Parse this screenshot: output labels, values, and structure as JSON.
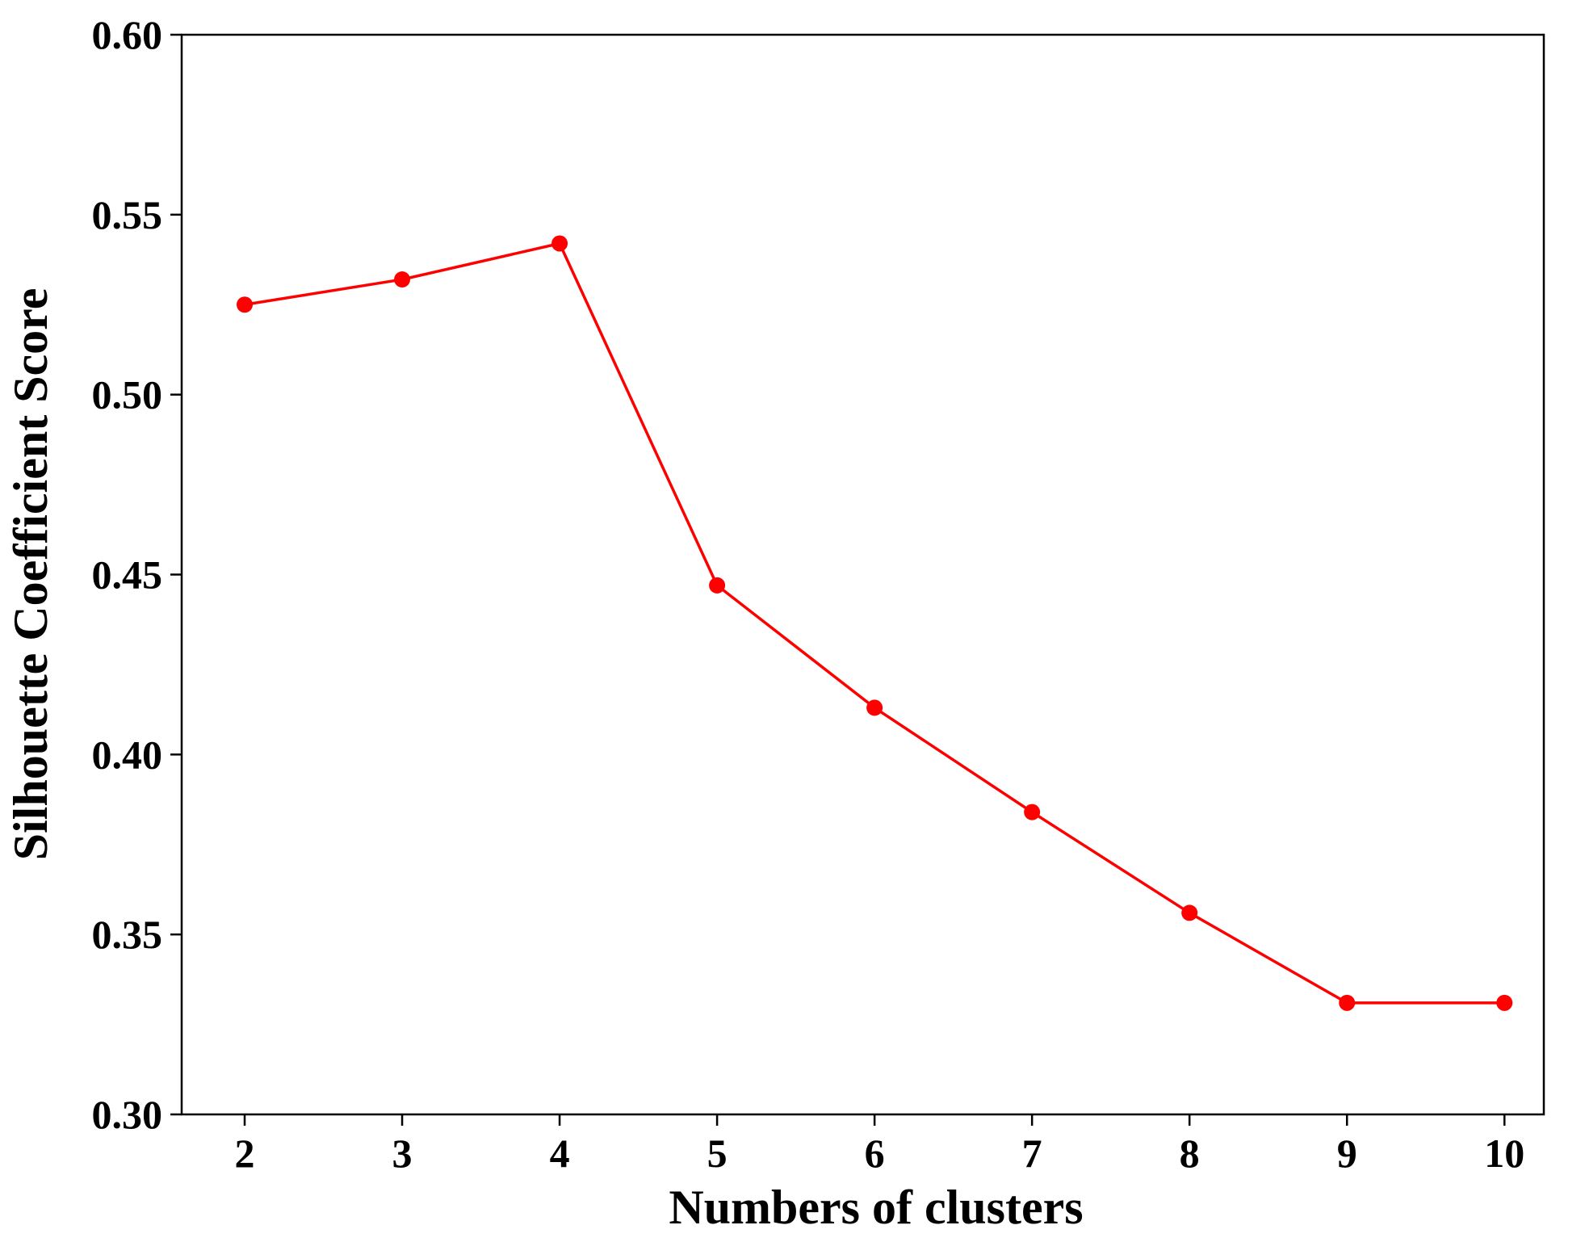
{
  "chart_data": {
    "type": "line",
    "title": "",
    "xlabel": "Numbers of clusters",
    "ylabel": "Silhouette Coefficient Score",
    "x": [
      2,
      3,
      4,
      5,
      6,
      7,
      8,
      9,
      10
    ],
    "series": [
      {
        "values": [
          0.525,
          0.532,
          0.542,
          0.447,
          0.413,
          0.384,
          0.356,
          0.331,
          0.331
        ],
        "color": "#ff0000",
        "marker": "circle"
      }
    ],
    "xticks": [
      "2",
      "3",
      "4",
      "5",
      "6",
      "7",
      "8",
      "9",
      "10"
    ],
    "yticks": [
      "0.30",
      "0.35",
      "0.40",
      "0.45",
      "0.50",
      "0.55",
      "0.60"
    ],
    "xlim": [
      1.6,
      10.25
    ],
    "ylim": [
      0.3,
      0.6
    ],
    "grid": false,
    "legend": false
  }
}
